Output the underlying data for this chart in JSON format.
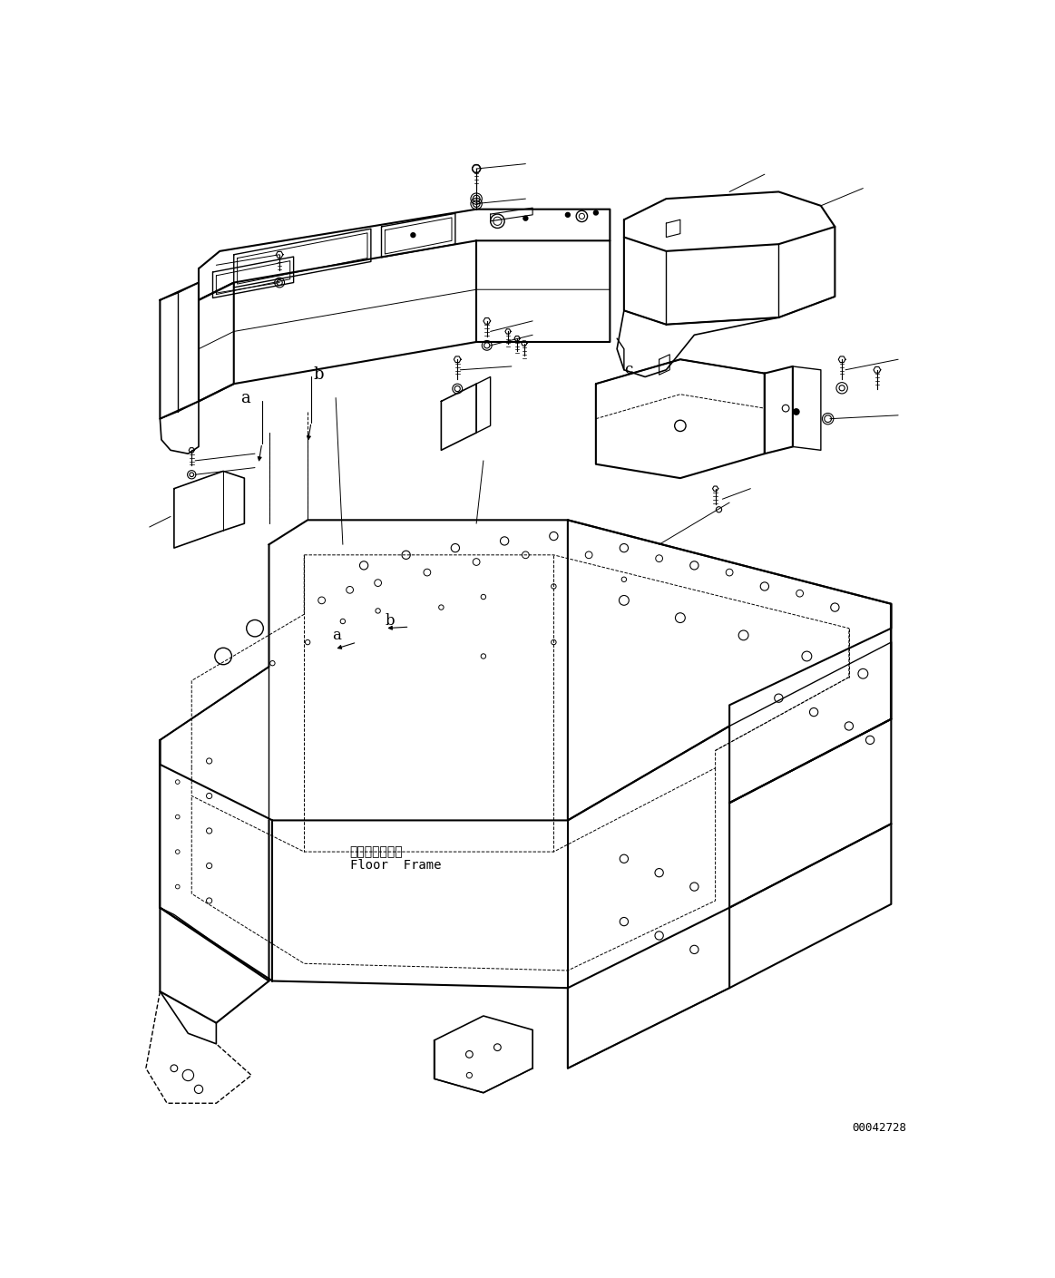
{
  "figure_width": 11.63,
  "figure_height": 14.09,
  "dpi": 100,
  "background_color": "#ffffff",
  "line_color": "#000000",
  "line_width": 1.2,
  "text_color": "#000000",
  "watermark": "00042728",
  "label_floor_frame_jp": "フロアフレーム",
  "label_floor_frame_en": "Floor  Frame"
}
